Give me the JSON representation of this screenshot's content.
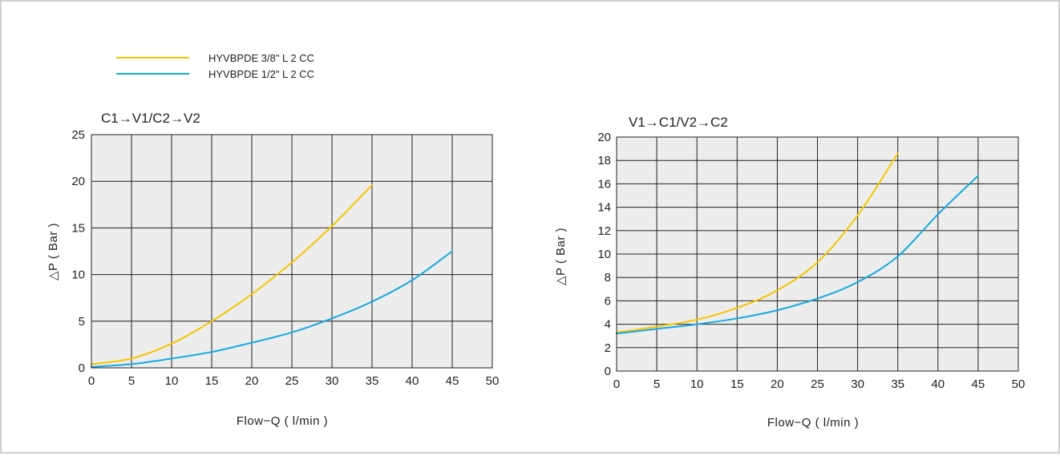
{
  "legend": [
    {
      "label": "HYVBPDE 3/8\" L 2 CC",
      "color": "#f7c600"
    },
    {
      "label": "HYVBPDE 1/2\" L 2 CC",
      "color": "#17a9df"
    }
  ],
  "chart_data": [
    {
      "type": "line",
      "title": "C1→V1/C2→V2",
      "xlabel": "Flow−Q ( l/min )",
      "ylabel": "△P ( Bar )",
      "xlim": [
        0,
        50
      ],
      "ylim": [
        0,
        25
      ],
      "xticks": [
        0,
        5,
        10,
        15,
        20,
        25,
        30,
        35,
        40,
        45,
        50
      ],
      "yticks": [
        0,
        5,
        10,
        15,
        20,
        25
      ],
      "grid": true,
      "plot_background": "#ededed",
      "series": [
        {
          "name": "HYVBPDE 3/8\" L 2 CC",
          "color": "#f7c600",
          "x": [
            0,
            5,
            10,
            15,
            20,
            25,
            30,
            35
          ],
          "y": [
            0.4,
            1.0,
            2.6,
            5.0,
            7.9,
            11.3,
            15.2,
            19.6
          ]
        },
        {
          "name": "HYVBPDE 1/2\" L 2 CC",
          "color": "#17a9df",
          "x": [
            0,
            5,
            10,
            15,
            20,
            25,
            30,
            35,
            40,
            45
          ],
          "y": [
            0.1,
            0.4,
            1.0,
            1.7,
            2.7,
            3.8,
            5.3,
            7.1,
            9.4,
            12.5
          ]
        }
      ]
    },
    {
      "type": "line",
      "title": "V1→C1/V2→C2",
      "xlabel": "Flow−Q ( l/min )",
      "ylabel": "△P ( Bar )",
      "xlim": [
        0,
        50
      ],
      "ylim": [
        0,
        20
      ],
      "xticks": [
        0,
        5,
        10,
        15,
        20,
        25,
        30,
        35,
        40,
        45,
        50
      ],
      "yticks": [
        0,
        2,
        4,
        6,
        8,
        10,
        12,
        14,
        16,
        18,
        20
      ],
      "grid": true,
      "plot_background": "#ededed",
      "series": [
        {
          "name": "HYVBPDE 3/8\" L 2 CC",
          "color": "#f7c600",
          "x": [
            0,
            5,
            10,
            15,
            20,
            25,
            30,
            35
          ],
          "y": [
            3.3,
            3.8,
            4.4,
            5.4,
            6.9,
            9.3,
            13.3,
            18.6
          ]
        },
        {
          "name": "HYVBPDE 1/2\" L 2 CC",
          "color": "#17a9df",
          "x": [
            0,
            5,
            10,
            15,
            20,
            25,
            30,
            35,
            40,
            45
          ],
          "y": [
            3.2,
            3.6,
            4.0,
            4.5,
            5.2,
            6.2,
            7.6,
            9.8,
            13.4,
            16.7
          ]
        }
      ]
    }
  ]
}
